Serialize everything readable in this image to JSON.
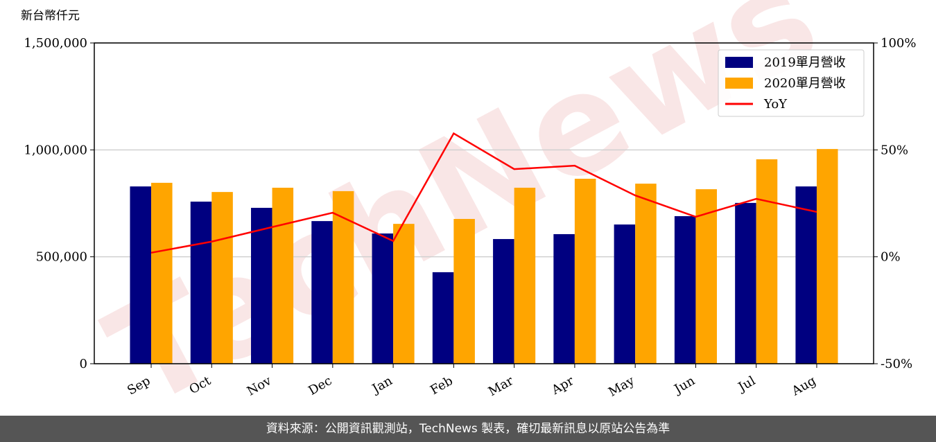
{
  "chart_data": {
    "type": "bar-line",
    "y_label": "新台幣仟元",
    "watermark": "TechNews",
    "categories": [
      "Sep",
      "Oct",
      "Nov",
      "Dec",
      "Jan",
      "Feb",
      "Mar",
      "Apr",
      "May",
      "Jun",
      "Jul",
      "Aug"
    ],
    "series": [
      {
        "name": "2019單月營收",
        "type": "bar",
        "color": "#000080",
        "values": [
          829000,
          758000,
          729000,
          667000,
          609000,
          428000,
          583000,
          606000,
          651000,
          690000,
          752000,
          829000
        ]
      },
      {
        "name": "2020單月營收",
        "type": "bar",
        "color": "#ffa500",
        "values": [
          846000,
          803000,
          823000,
          807000,
          654000,
          677000,
          823000,
          865000,
          842000,
          816000,
          956000,
          1004000
        ]
      },
      {
        "name": "YoY",
        "type": "line",
        "axis": "y2",
        "color": "#ff0000",
        "values": [
          1.9,
          7.1,
          13.9,
          20.6,
          7.4,
          57.7,
          41.0,
          42.6,
          28.7,
          18.7,
          27.1,
          21.0
        ]
      }
    ],
    "ylim": [
      0,
      1500000
    ],
    "yticks": [
      0,
      {
        "value": 500000,
        "label": "500,000"
      },
      {
        "value": 1000000,
        "label": "1,000,000"
      },
      {
        "value": 1500000,
        "label": "1,500,000"
      }
    ],
    "y2lim": [
      -50,
      100
    ],
    "y2ticks": [
      {
        "value": -50,
        "label": "-50%"
      },
      {
        "value": 0,
        "label": "0%"
      },
      {
        "value": 50,
        "label": "50%"
      },
      {
        "value": 100,
        "label": "100%"
      }
    ],
    "grid": true,
    "legend": "upper-right",
    "footer": "資料來源：公開資訊觀測站，TechNews 製表，確切最新訊息以原站公告為準"
  }
}
